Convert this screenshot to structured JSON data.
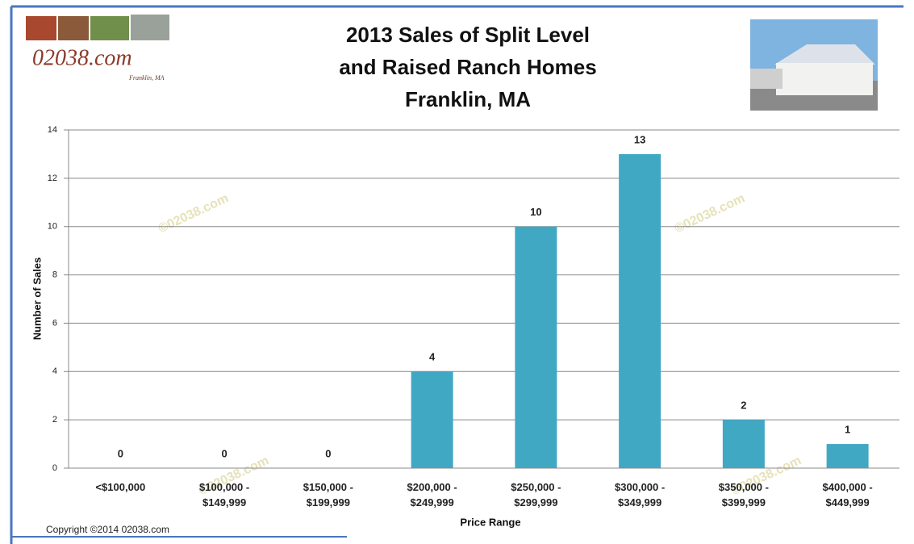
{
  "logo": {
    "site": "02038.com",
    "place": "Franklin, MA"
  },
  "copyright": "Copyright ©2014 02038.com",
  "watermark": "©02038.com",
  "chart_data": {
    "type": "bar",
    "title": [
      "2013 Sales of Split Level",
      "and Raised Ranch Homes",
      "Franklin, MA"
    ],
    "x_label": "Price Range",
    "y_label": "Number of Sales",
    "categories": [
      "<$100,000",
      "$100,000 -\n$149,999",
      "$150,000 -\n$199,999",
      "$200,000 -\n$249,999",
      "$250,000 -\n$299,999",
      "$300,000 -\n$349,999",
      "$350,000 -\n$399,999",
      "$400,000 -\n$449,999"
    ],
    "values": [
      0,
      0,
      0,
      4,
      10,
      13,
      2,
      1
    ],
    "color": "#41a8c4",
    "ylim": [
      0,
      14
    ],
    "yticks": [
      0,
      2,
      4,
      6,
      8,
      10,
      12,
      14
    ],
    "grid": true
  }
}
